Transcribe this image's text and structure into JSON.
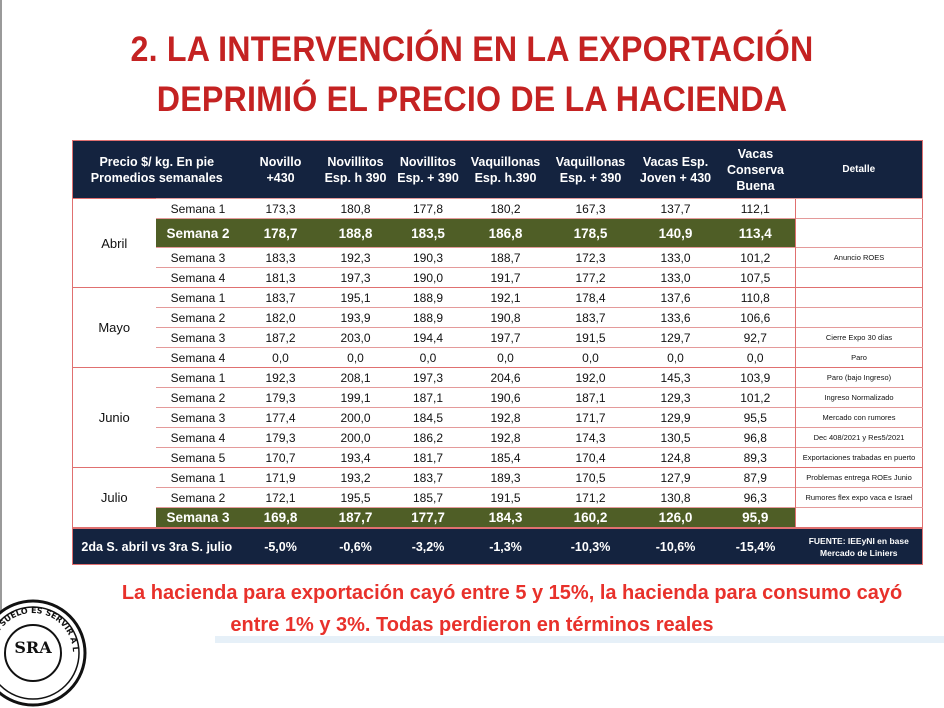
{
  "title": {
    "line1": "2. LA INTERVENCIÓN  EN LA EXPORTACIÓN",
    "line2": "DEPRIMIÓ EL PRECIO DE LA HACIENDA"
  },
  "table": {
    "headers": [
      "Precio $/ kg. En pie\nPromedios semanales",
      "Novillo\n+430",
      "Novillitos\nEsp. h 390",
      "Novillitos\nEsp. + 390",
      "Vaquillonas\nEsp. h.390",
      "Vaquillonas\nEsp. + 390",
      "Vacas Esp.\nJoven + 430",
      "Vacas\nConserva\nBuena",
      "Detalle"
    ],
    "months": [
      {
        "name": "Abril",
        "rows": [
          {
            "week": "Semana 1",
            "values": [
              "173,3",
              "180,8",
              "177,8",
              "180,2",
              "167,3",
              "137,7",
              "112,1"
            ],
            "detail": ""
          },
          {
            "week": "Semana 2",
            "values": [
              "178,7",
              "188,8",
              "183,5",
              "186,8",
              "178,5",
              "140,9",
              "113,4"
            ],
            "detail": "",
            "highlight": true
          },
          {
            "week": "Semana 3",
            "values": [
              "183,3",
              "192,3",
              "190,3",
              "188,7",
              "172,3",
              "133,0",
              "101,2"
            ],
            "detail": "Anuncio ROES"
          },
          {
            "week": "Semana 4",
            "values": [
              "181,3",
              "197,3",
              "190,0",
              "191,7",
              "177,2",
              "133,0",
              "107,5"
            ],
            "detail": ""
          }
        ]
      },
      {
        "name": "Mayo",
        "rows": [
          {
            "week": "Semana 1",
            "values": [
              "183,7",
              "195,1",
              "188,9",
              "192,1",
              "178,4",
              "137,6",
              "110,8"
            ],
            "detail": ""
          },
          {
            "week": "Semana 2",
            "values": [
              "182,0",
              "193,9",
              "188,9",
              "190,8",
              "183,7",
              "133,6",
              "106,6"
            ],
            "detail": ""
          },
          {
            "week": "Semana 3",
            "values": [
              "187,2",
              "203,0",
              "194,4",
              "197,7",
              "191,5",
              "129,7",
              "92,7"
            ],
            "detail": "Cierre Expo 30 días"
          },
          {
            "week": "Semana 4",
            "values": [
              "0,0",
              "0,0",
              "0,0",
              "0,0",
              "0,0",
              "0,0",
              "0,0"
            ],
            "detail": "Paro"
          }
        ]
      },
      {
        "name": "Junio",
        "rows": [
          {
            "week": "Semana 1",
            "values": [
              "192,3",
              "208,1",
              "197,3",
              "204,6",
              "192,0",
              "145,3",
              "103,9"
            ],
            "detail": "Paro (bajo Ingreso)"
          },
          {
            "week": "Semana 2",
            "values": [
              "179,3",
              "199,1",
              "187,1",
              "190,6",
              "187,1",
              "129,3",
              "101,2"
            ],
            "detail": "Ingreso Normalizado"
          },
          {
            "week": "Semana 3",
            "values": [
              "177,4",
              "200,0",
              "184,5",
              "192,8",
              "171,7",
              "129,9",
              "95,5"
            ],
            "detail": "Mercado con rumores"
          },
          {
            "week": "Semana 4",
            "values": [
              "179,3",
              "200,0",
              "186,2",
              "192,8",
              "174,3",
              "130,5",
              "96,8"
            ],
            "detail": "Dec 408/2021 y Res5/2021"
          },
          {
            "week": "Semana 5",
            "values": [
              "170,7",
              "193,4",
              "181,7",
              "185,4",
              "170,4",
              "124,8",
              "89,3"
            ],
            "detail": "Exportaciones trabadas en puerto"
          }
        ]
      },
      {
        "name": "Julio",
        "rows": [
          {
            "week": "Semana 1",
            "values": [
              "171,9",
              "193,2",
              "183,7",
              "189,3",
              "170,5",
              "127,9",
              "87,9"
            ],
            "detail": "Problemas entrega ROEs Junio"
          },
          {
            "week": "Semana 2",
            "values": [
              "172,1",
              "195,5",
              "185,7",
              "191,5",
              "171,2",
              "130,8",
              "96,3"
            ],
            "detail": "Rumores  flex expo vaca e Israel"
          },
          {
            "week": "Semana 3",
            "values": [
              "169,8",
              "187,7",
              "177,7",
              "184,3",
              "160,2",
              "126,0",
              "95,9"
            ],
            "detail": "",
            "highlight": true
          }
        ]
      }
    ],
    "footer": {
      "label": "2da S. abril vs 3ra  S. julio",
      "values": [
        "-5,0%",
        "-0,6%",
        "-3,2%",
        "-1,3%",
        "-10,3%",
        "-10,6%",
        "-15,4%"
      ],
      "source": "FUENTE: IEEyNI en base Mercado de Liniers"
    }
  },
  "bottom": {
    "line1": "La hacienda para exportación cayó entre 5 y 15%, la hacienda para consumo cayó",
    "line2": "entre 1% y 3%. Todas perdieron en términos reales"
  },
  "seal": {
    "text": "CULTIVAR EL SUELO ES SERVIR A LA PATRIA",
    "letters": "SRA"
  },
  "colors": {
    "title": "#c42222",
    "header": "#14233f",
    "highlight": "#4f5e26",
    "rule": "#e07070"
  }
}
